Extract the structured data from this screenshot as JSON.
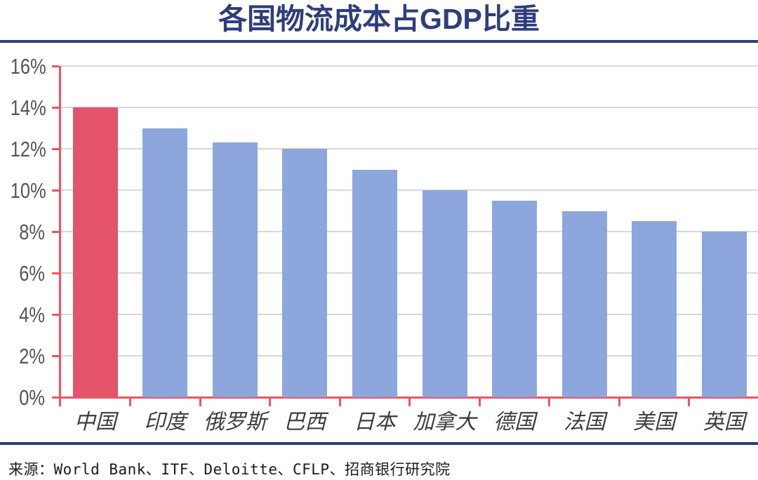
{
  "title": "各国物流成本占GDP比重",
  "source": "来源：World Bank、ITF、Deloitte、CFLP、招商银行研究院",
  "colors": {
    "navy": "#2E3D7C",
    "bar_blue": "#8DA6DB",
    "bar_highlight_red": "#E4556C",
    "axis_red": "#ED5560",
    "gridline_gray": "#D8D8D8",
    "ylabel_gray": "#555555",
    "xlabel_gray": "#3D3D3D"
  },
  "chart_data": {
    "type": "bar",
    "title": "各国物流成本占GDP比重",
    "categories": [
      "中国",
      "印度",
      "俄罗斯",
      "巴西",
      "日本",
      "加拿大",
      "德国",
      "法国",
      "美国",
      "英国"
    ],
    "values": [
      14,
      13,
      12.3,
      12,
      11,
      10,
      9.5,
      9,
      8.5,
      8
    ],
    "unit": "%",
    "ylim": [
      0,
      16
    ],
    "ytick_step": 2,
    "ytick_labels": [
      "0%",
      "2%",
      "4%",
      "6%",
      "8%",
      "10%",
      "12%",
      "14%",
      "16%"
    ],
    "highlight_category": "中国",
    "grid": "horizontal-gray",
    "legend": "none",
    "xlabel": "",
    "ylabel": ""
  }
}
